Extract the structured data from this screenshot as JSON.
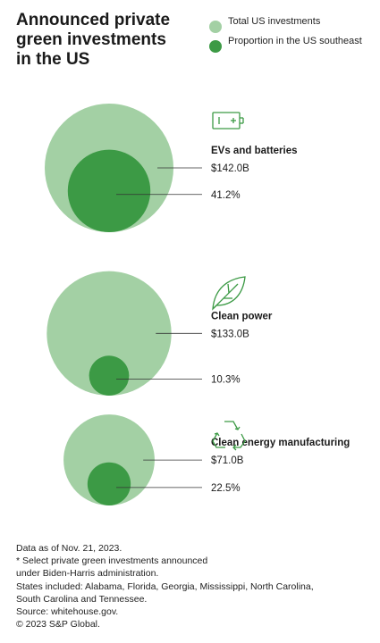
{
  "chart_data": {
    "type": "bubble",
    "title": "Announced private green investments in the US",
    "legend": [
      {
        "label": "Total US investments",
        "color": "#a3d0a4"
      },
      {
        "label": "Proportion in the US southeast",
        "color": "#3c9a45"
      }
    ],
    "categories": [
      "EVs and batteries",
      "Clean power",
      "Clean energy manufacturing"
    ],
    "series": [
      {
        "name": "Total US investments",
        "values": [
          142.0,
          133.0,
          71.0
        ],
        "labels": [
          "$142.0B",
          "$133.0B",
          "$71.0B"
        ]
      },
      {
        "name": "Proportion in the US southeast",
        "values": [
          41.2,
          10.3,
          22.5
        ],
        "labels": [
          "41.2%",
          "10.3%",
          "22.5%"
        ]
      }
    ],
    "icons": [
      "battery-icon",
      "leaf-icon",
      "recycle-icon"
    ],
    "colors": {
      "total": "#a3d0a4",
      "southeast": "#3c9a45",
      "icon": "#3c9a45",
      "leader": "#333333"
    }
  },
  "footnotes": [
    "Data as of Nov. 21, 2023.",
    "* Select private green investments announced",
    "under Biden-Harris administration.",
    "States included: Alabama, Florida, Georgia, Mississippi, North Carolina,",
    "South Carolina and Tennessee.",
    "Source: whitehouse.gov.",
    "© 2023 S&P Global."
  ]
}
